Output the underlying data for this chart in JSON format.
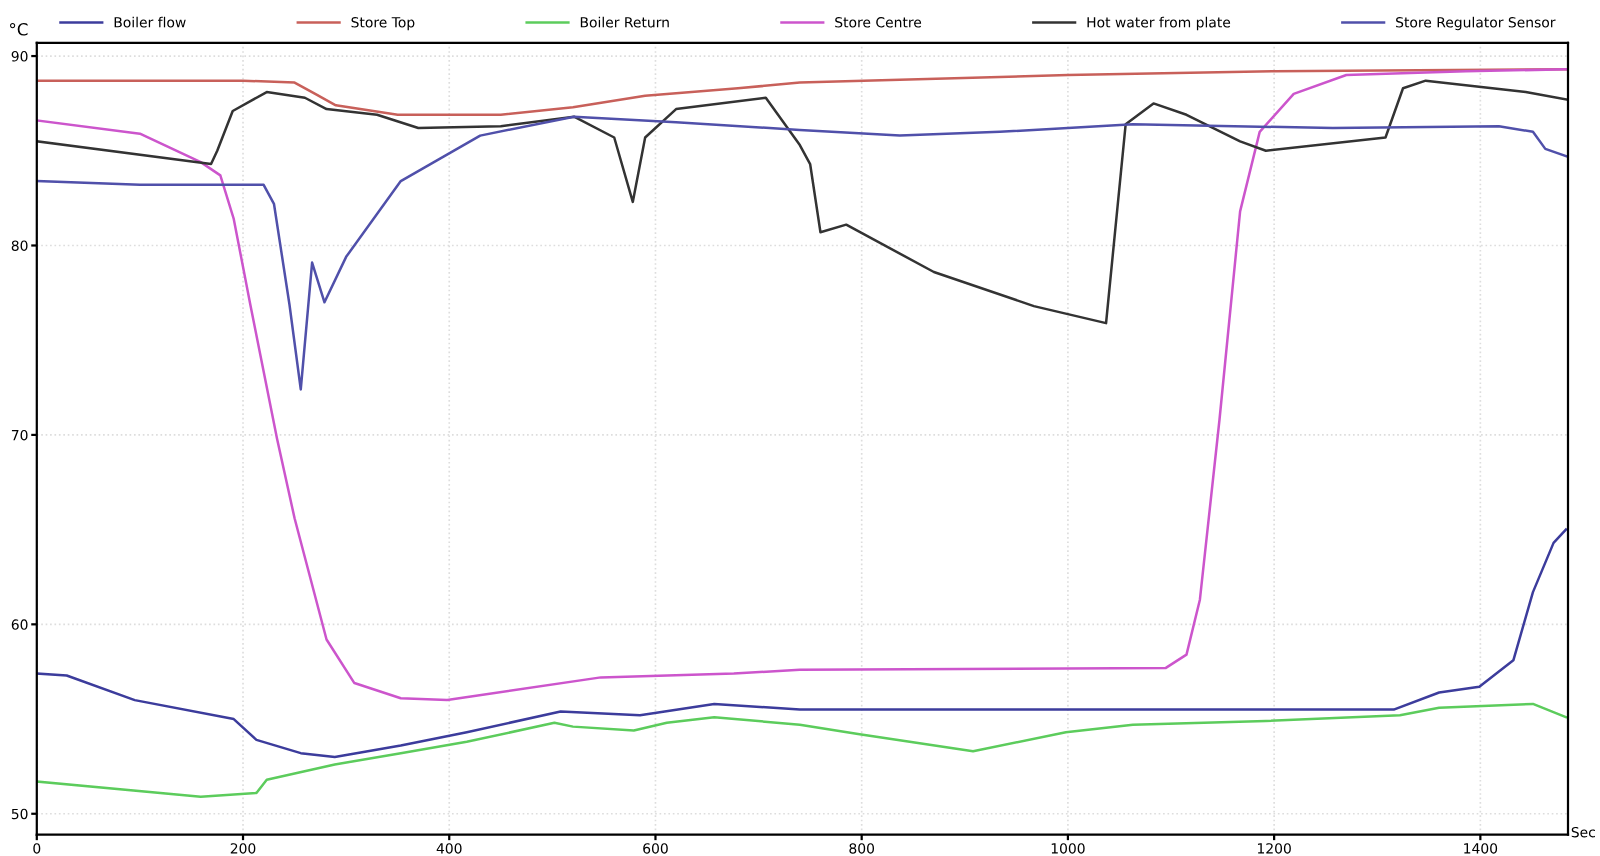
{
  "chart_data": {
    "type": "line",
    "xlabel": "Sec",
    "ylabel": "°C",
    "xlim": [
      0,
      1485
    ],
    "ylim": [
      48.9,
      90.7
    ],
    "xticks": [
      0,
      200,
      400,
      600,
      800,
      1000,
      1200,
      1400
    ],
    "yticks": [
      50,
      60,
      70,
      80,
      90
    ],
    "grid": true,
    "legend": "top",
    "marker": "none",
    "line_style": "solid",
    "series": [
      {
        "name": "Boiler flow",
        "color": "#3c3c9c",
        "x": [
          0,
          29,
          95,
          191,
          213,
          256,
          289,
          353,
          417,
          508,
          585,
          657,
          740,
          1000,
          1316,
          1360,
          1399,
          1432,
          1451,
          1471,
          1483
        ],
        "values": [
          57.4,
          57.3,
          56.0,
          55.0,
          53.9,
          53.2,
          53.0,
          53.6,
          54.3,
          55.4,
          55.2,
          55.8,
          55.5,
          55.5,
          55.5,
          56.4,
          56.7,
          58.1,
          61.7,
          64.3,
          65.0
        ]
      },
      {
        "name": "Store Top",
        "color": "#c8605a",
        "x": [
          0,
          100,
          200,
          250,
          270,
          290,
          350,
          450,
          520,
          590,
          680,
          740,
          1000,
          1200,
          1484
        ],
        "values": [
          88.7,
          88.7,
          88.7,
          88.6,
          88.0,
          87.4,
          86.9,
          86.9,
          87.3,
          87.9,
          88.3,
          88.6,
          89.0,
          89.2,
          89.3
        ]
      },
      {
        "name": "Boiler Return",
        "color": "#5ccc5c",
        "x": [
          0,
          159,
          213,
          223,
          289,
          353,
          417,
          502,
          520,
          579,
          611,
          657,
          740,
          798,
          908,
          998,
          1063,
          1192,
          1322,
          1360,
          1451,
          1483
        ],
        "values": [
          51.7,
          50.9,
          51.1,
          51.8,
          52.6,
          53.2,
          53.8,
          54.8,
          54.6,
          54.4,
          54.8,
          55.1,
          54.7,
          54.2,
          53.3,
          54.3,
          54.7,
          54.9,
          55.2,
          55.6,
          55.8,
          55.1
        ]
      },
      {
        "name": "Store Centre",
        "color": "#cc55cc",
        "x": [
          0,
          100,
          159,
          178,
          191,
          207,
          233,
          250,
          281,
          308,
          353,
          398,
          547,
          676,
          740,
          1095,
          1115,
          1128,
          1147,
          1167,
          1186,
          1219,
          1270,
          1386,
          1484
        ],
        "values": [
          86.6,
          85.9,
          84.4,
          83.7,
          81.4,
          76.9,
          69.8,
          65.6,
          59.2,
          56.9,
          56.1,
          56.0,
          57.2,
          57.4,
          57.6,
          57.7,
          58.4,
          61.3,
          70.8,
          81.8,
          86.0,
          88.0,
          89.0,
          89.2,
          89.3
        ]
      },
      {
        "name": "Hot water from plate",
        "color": "#333333",
        "x": [
          0,
          169,
          175,
          190,
          223,
          260,
          281,
          330,
          370,
          450,
          521,
          560,
          578,
          590,
          620,
          707,
          740,
          750,
          760,
          785,
          870,
          967,
          1037,
          1056,
          1083,
          1115,
          1167,
          1192,
          1308,
          1325,
          1347,
          1444,
          1484
        ],
        "values": [
          85.5,
          84.3,
          85.0,
          87.1,
          88.1,
          87.8,
          87.2,
          86.9,
          86.2,
          86.3,
          86.8,
          85.7,
          82.3,
          85.7,
          87.2,
          87.8,
          85.3,
          84.3,
          80.7,
          81.1,
          78.6,
          76.8,
          75.9,
          86.4,
          87.5,
          86.9,
          85.5,
          85.0,
          85.7,
          88.3,
          88.7,
          88.1,
          87.7
        ]
      },
      {
        "name": "Store Regulator Sensor",
        "color": "#5050aa",
        "x": [
          0,
          100,
          220,
          230,
          245,
          256,
          267,
          279,
          300,
          353,
          430,
          521,
          620,
          740,
          837,
          934,
          1063,
          1257,
          1418,
          1451,
          1463,
          1484
        ],
        "values": [
          83.4,
          83.2,
          83.2,
          82.2,
          76.9,
          72.4,
          79.1,
          77.0,
          79.4,
          83.4,
          85.8,
          86.8,
          86.5,
          86.1,
          85.8,
          86.0,
          86.4,
          86.2,
          86.3,
          86.0,
          85.1,
          84.7
        ]
      }
    ]
  }
}
